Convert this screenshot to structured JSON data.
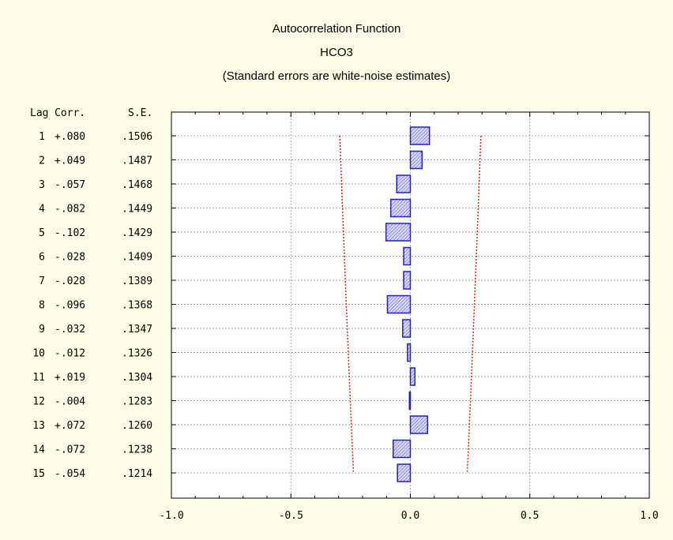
{
  "chart_data": {
    "type": "bar",
    "orientation": "horizontal",
    "title": "Autocorrelation Function",
    "subtitle": "HCO3",
    "note": "(Standard errors are white-noise estimates)",
    "table_headers": {
      "lag": "Lag",
      "corr": "Corr.",
      "se": "S.E."
    },
    "lags": [
      1,
      2,
      3,
      4,
      5,
      6,
      7,
      8,
      9,
      10,
      11,
      12,
      13,
      14,
      15
    ],
    "corr_labels": [
      "+.080",
      "+.049",
      "-.057",
      "-.082",
      "-.102",
      "-.028",
      "-.028",
      "-.096",
      "-.032",
      "-.012",
      "+.019",
      "-.004",
      "+.072",
      "-.072",
      "-.054"
    ],
    "corr_values": [
      0.08,
      0.049,
      -0.057,
      -0.082,
      -0.102,
      -0.028,
      -0.028,
      -0.096,
      -0.032,
      -0.012,
      0.019,
      -0.004,
      0.072,
      -0.072,
      -0.054
    ],
    "se_labels": [
      ".1506",
      ".1487",
      ".1468",
      ".1449",
      ".1429",
      ".1409",
      ".1389",
      ".1368",
      ".1347",
      ".1326",
      ".1304",
      ".1283",
      ".1260",
      ".1238",
      ".1214"
    ],
    "se_values": [
      0.1506,
      0.1487,
      0.1468,
      0.1449,
      0.1429,
      0.1409,
      0.1389,
      0.1368,
      0.1347,
      0.1326,
      0.1304,
      0.1283,
      0.126,
      0.1238,
      0.1214
    ],
    "confidence_multiplier": 1.96,
    "xlim": [
      -1.0,
      1.0
    ],
    "x_ticks": [
      -1.0,
      -0.5,
      0.0,
      0.5,
      1.0
    ],
    "x_tick_labels": [
      "-1.0",
      "-0.5",
      "0.0",
      "0.5",
      "1.0"
    ],
    "grid": true,
    "colors": {
      "bar_stroke": "#2020c8",
      "bar_fill": "#c8c8e8",
      "confidence_line": "#d42020",
      "grid": "#a0a0a0",
      "background": "#fdfde8",
      "plot_background": "#ffffff"
    }
  }
}
